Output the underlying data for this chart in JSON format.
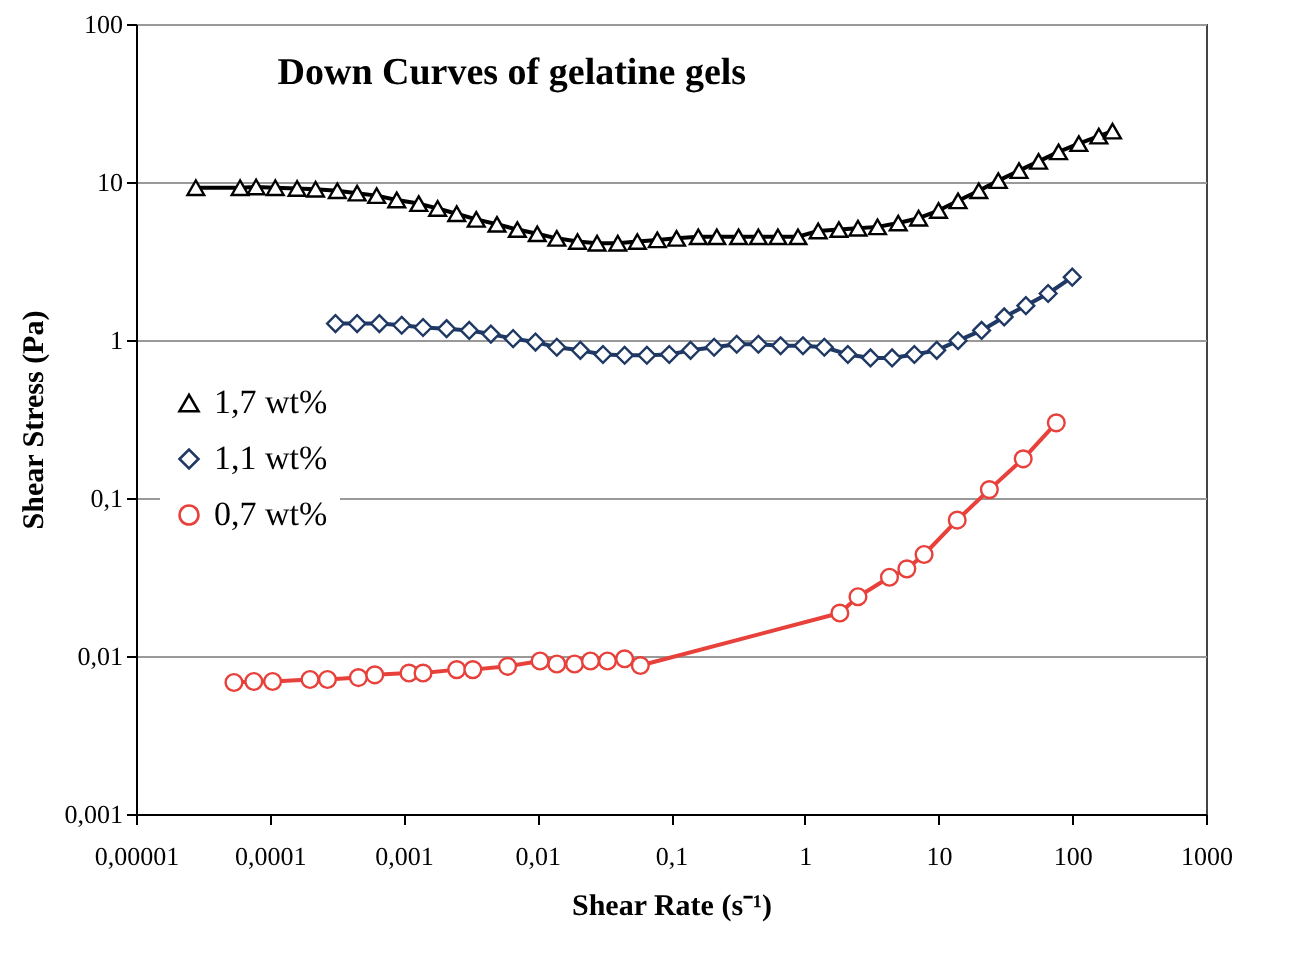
{
  "chart_data": {
    "type": "line",
    "title": "Down Curves of gelatine gels",
    "xlabel": "Shear Rate (s⁻¹)",
    "ylabel": "Shear Stress (Pa)",
    "log": "xy",
    "grid": "y",
    "legend": "left",
    "xlim": [
      1e-05,
      1000
    ],
    "xticks": [
      {
        "value": 1e-05,
        "label": "0,00001"
      },
      {
        "value": 0.0001,
        "label": "0,0001"
      },
      {
        "value": 0.001,
        "label": "0,001"
      },
      {
        "value": 0.01,
        "label": "0,01"
      },
      {
        "value": 0.1,
        "label": "0,1"
      },
      1,
      10,
      100,
      1000
    ],
    "ylim": [
      0.001,
      100
    ],
    "yticks": [
      {
        "value": 0.001,
        "label": "0,001"
      },
      {
        "value": 0.01,
        "label": "0,01"
      },
      {
        "value": 0.1,
        "label": "0,1"
      },
      1,
      10,
      100
    ],
    "series": [
      {
        "name": "1,7 wt%",
        "color": "#000000",
        "marker": "triangle",
        "x": [
          2.8e-05,
          6e-05,
          7.9e-05,
          0.00011,
          0.00016,
          0.00022,
          0.00032,
          0.00045,
          0.00063,
          0.00089,
          0.0013,
          0.0018,
          0.0025,
          0.0035,
          0.005,
          0.0071,
          0.01,
          0.014,
          0.02,
          0.028,
          0.04,
          0.056,
          0.079,
          0.11,
          0.16,
          0.22,
          0.32,
          0.45,
          0.63,
          0.89,
          1.26,
          1.8,
          2.5,
          3.5,
          5,
          7.1,
          10,
          14,
          20,
          28,
          40,
          56,
          79,
          112,
          158,
          200
        ],
        "values": [
          9.2,
          9.2,
          9.3,
          9.2,
          9.1,
          9.0,
          8.8,
          8.5,
          8.2,
          7.7,
          7.3,
          6.8,
          6.3,
          5.8,
          5.4,
          5.0,
          4.7,
          4.4,
          4.2,
          4.1,
          4.1,
          4.2,
          4.3,
          4.4,
          4.5,
          4.5,
          4.5,
          4.5,
          4.5,
          4.5,
          4.9,
          5.0,
          5.1,
          5.2,
          5.5,
          5.9,
          6.6,
          7.6,
          8.8,
          10.2,
          11.8,
          13.5,
          15.5,
          17.5,
          19.5,
          21
        ]
      },
      {
        "name": "1,1 wt%",
        "color": "#1f3864",
        "marker": "diamond",
        "x": [
          0.00031,
          0.00045,
          0.00066,
          0.00097,
          0.0014,
          0.0021,
          0.0031,
          0.0045,
          0.0066,
          0.0097,
          0.014,
          0.021,
          0.031,
          0.045,
          0.066,
          0.097,
          0.14,
          0.21,
          0.31,
          0.45,
          0.66,
          0.97,
          1.4,
          2.1,
          3.1,
          4.5,
          6.6,
          9.7,
          14,
          21,
          31,
          45,
          66,
          100
        ],
        "values": [
          1.27,
          1.27,
          1.27,
          1.24,
          1.2,
          1.18,
          1.15,
          1.09,
          1.02,
          0.97,
          0.9,
          0.86,
          0.81,
          0.8,
          0.8,
          0.81,
          0.86,
          0.9,
          0.94,
          0.94,
          0.92,
          0.92,
          0.9,
          0.81,
          0.77,
          0.77,
          0.81,
          0.86,
          0.99,
          1.15,
          1.4,
          1.65,
          1.97,
          2.5
        ]
      },
      {
        "name": "0,7 wt%",
        "color": "#e8403a",
        "marker": "circle",
        "x": [
          5.4e-05,
          7.6e-05,
          0.000105,
          0.0002,
          0.00027,
          0.00046,
          0.00061,
          0.0011,
          0.0014,
          0.0025,
          0.0033,
          0.006,
          0.0105,
          0.014,
          0.019,
          0.025,
          0.0335,
          0.045,
          0.059,
          1.83,
          2.5,
          4.3,
          5.8,
          7.8,
          13.8,
          24,
          43,
          76
        ],
        "values": [
          0.0068,
          0.0069,
          0.0069,
          0.0071,
          0.0071,
          0.0073,
          0.0076,
          0.0078,
          0.0078,
          0.0082,
          0.0082,
          0.0086,
          0.0093,
          0.0089,
          0.0089,
          0.0093,
          0.0093,
          0.0096,
          0.0087,
          0.0187,
          0.0237,
          0.0315,
          0.0356,
          0.0439,
          0.0725,
          0.113,
          0.177,
          0.299
        ]
      }
    ]
  }
}
